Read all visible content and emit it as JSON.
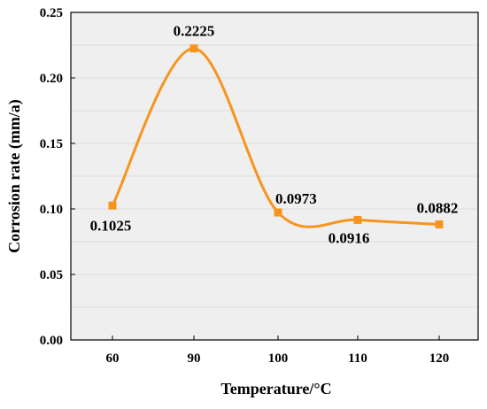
{
  "chart_data": {
    "type": "line",
    "title": "",
    "xlabel": "Temperature/°C",
    "ylabel": "Corrosion rate (mm/a)",
    "categories": [
      "60",
      "90",
      "100",
      "110",
      "120"
    ],
    "x": [
      60,
      90,
      100,
      110,
      120
    ],
    "series": [
      {
        "values": [
          0.1025,
          0.2225,
          0.0973,
          0.0916,
          0.0882
        ],
        "data_labels": [
          "0.1025",
          "0.2225",
          "0.0973",
          "0.0916",
          "0.0882"
        ],
        "color": "#f7941d",
        "marker": "square",
        "smooth": true
      }
    ],
    "ylim": [
      0,
      0.25
    ],
    "y_ticks": [
      0.0,
      0.05,
      0.1,
      0.15,
      0.2,
      0.25
    ],
    "y_tick_labels": [
      "0.00",
      "0.05",
      "0.10",
      "0.15",
      "0.20",
      "0.25"
    ],
    "grid": true,
    "plot_background": "#efefef",
    "grid_color": "#dcdcdc"
  }
}
